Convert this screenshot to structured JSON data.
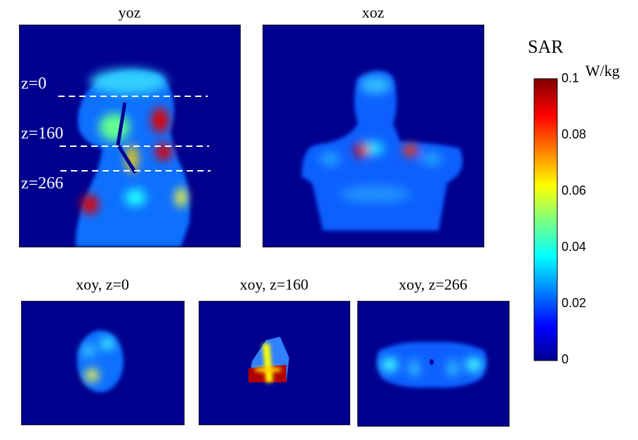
{
  "chart_data": {
    "type": "heatmap",
    "colormap": "jet",
    "colorbar": {
      "title": "SAR",
      "unit": "W/kg",
      "range": [
        0,
        0.1
      ],
      "ticks": [
        "0",
        "0.02",
        "0.04",
        "0.06",
        "0.08",
        "0.1"
      ]
    },
    "panels": [
      {
        "title": "yoz",
        "slice_labels": [
          "z=0",
          "z=160",
          "z=266"
        ]
      },
      {
        "title": "xoz"
      },
      {
        "title": "xoy, z=0"
      },
      {
        "title": "xoy, z=160"
      },
      {
        "title": "xoy, z=266"
      }
    ]
  }
}
